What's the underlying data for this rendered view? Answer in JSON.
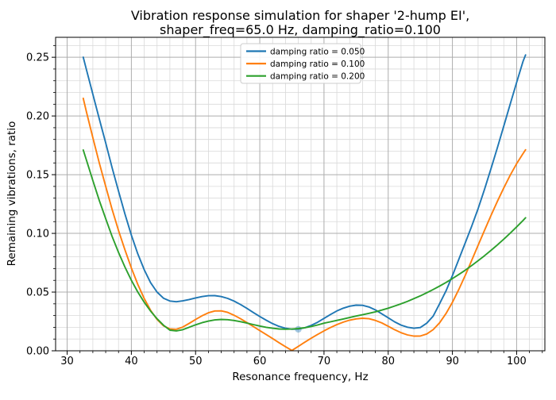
{
  "chart": {
    "title_line1": "Vibration response simulation for shaper '2-hump EI',",
    "title_line2": "shaper_freq=65.0 Hz, damping_ratio=0.100",
    "xlabel": "Resonance frequency, Hz",
    "ylabel": "Remaining vibrations, ratio"
  },
  "chart_data": {
    "type": "line",
    "title": "Vibration response simulation for shaper '2-hump EI',\nshaper_freq=65.0 Hz, damping_ratio=0.100",
    "xlabel": "Resonance frequency, Hz",
    "ylabel": "Remaining vibrations, ratio",
    "xlim": [
      28.2,
      104.4
    ],
    "ylim": [
      0,
      0.267
    ],
    "x_major_ticks": [
      30,
      40,
      50,
      60,
      70,
      80,
      90,
      100
    ],
    "x_tick_labels": [
      "30",
      "40",
      "50",
      "60",
      "70",
      "80",
      "90",
      "100"
    ],
    "x_minor_step": 2,
    "y_major_ticks": [
      0.0,
      0.05,
      0.1,
      0.15,
      0.2,
      0.25
    ],
    "y_tick_labels": [
      "0.00",
      "0.05",
      "0.10",
      "0.15",
      "0.20",
      "0.25"
    ],
    "y_minor_step": 0.01,
    "grid": "both",
    "legend_position": "upper center",
    "colors": {
      "grid_major": "#adadad",
      "grid_minor": "#d9d9d9",
      "spine": "#000000",
      "legend_border": "#cccccc",
      "legend_bg": "#ffffff"
    },
    "x": [
      32.5,
      33,
      34,
      35,
      36,
      37,
      38,
      39,
      40,
      41,
      42,
      43,
      44,
      45,
      46,
      47,
      48,
      49,
      50,
      51,
      52,
      53,
      54,
      55,
      56,
      57,
      58,
      59,
      60,
      61,
      62,
      63,
      64,
      65,
      66,
      67,
      68,
      69,
      70,
      71,
      72,
      73,
      74,
      75,
      76,
      77,
      78,
      79,
      80,
      81,
      82,
      83,
      84,
      85,
      86,
      87,
      88,
      89,
      90,
      91,
      92,
      93,
      94,
      95,
      96,
      97,
      98,
      99,
      100,
      101,
      101.4
    ],
    "series": [
      {
        "name": "damping ratio = 0.050",
        "color": "#1f77b4",
        "y": [
          0.25,
          0.2395,
          0.2185,
          0.1975,
          0.177,
          0.156,
          0.136,
          0.1165,
          0.0985,
          0.0825,
          0.069,
          0.058,
          0.05,
          0.0448,
          0.0424,
          0.0418,
          0.0425,
          0.0437,
          0.045,
          0.0462,
          0.0469,
          0.047,
          0.0462,
          0.0446,
          0.0423,
          0.0394,
          0.0361,
          0.0326,
          0.0292,
          0.026,
          0.0231,
          0.0208,
          0.0192,
          0.0184,
          0.0185,
          0.0196,
          0.0216,
          0.0243,
          0.0276,
          0.0309,
          0.0339,
          0.0363,
          0.038,
          0.0389,
          0.0387,
          0.0373,
          0.0348,
          0.0315,
          0.0281,
          0.0247,
          0.0219,
          0.0201,
          0.0192,
          0.0198,
          0.0235,
          0.0295,
          0.04,
          0.051,
          0.064,
          0.078,
          0.092,
          0.106,
          0.121,
          0.1375,
          0.155,
          0.173,
          0.1915,
          0.21,
          0.2285,
          0.2465,
          0.252
        ]
      },
      {
        "name": "damping ratio = 0.100",
        "color": "#ff7f0e",
        "y": [
          0.215,
          0.2035,
          0.1815,
          0.16,
          0.14,
          0.1205,
          0.1025,
          0.086,
          0.0705,
          0.0565,
          0.0445,
          0.0345,
          0.0267,
          0.0213,
          0.0186,
          0.0183,
          0.0202,
          0.0233,
          0.0266,
          0.0298,
          0.0324,
          0.0339,
          0.034,
          0.0327,
          0.0303,
          0.0273,
          0.024,
          0.0206,
          0.0172,
          0.0138,
          0.0104,
          0.0069,
          0.0035,
          0.0003,
          0.0038,
          0.0073,
          0.0107,
          0.0139,
          0.017,
          0.0198,
          0.0223,
          0.0244,
          0.0261,
          0.0272,
          0.0277,
          0.0273,
          0.0259,
          0.0237,
          0.0209,
          0.018,
          0.0154,
          0.0135,
          0.0125,
          0.0126,
          0.0143,
          0.018,
          0.0238,
          0.0317,
          0.0413,
          0.0523,
          0.0643,
          0.0769,
          0.0898,
          0.1026,
          0.1152,
          0.1273,
          0.1388,
          0.1495,
          0.1593,
          0.168,
          0.1712
        ]
      },
      {
        "name": "damping ratio = 0.200",
        "color": "#2ca02c",
        "y": [
          0.171,
          0.1625,
          0.145,
          0.128,
          0.1125,
          0.0975,
          0.0838,
          0.0713,
          0.06,
          0.05,
          0.0413,
          0.0338,
          0.0273,
          0.0218,
          0.0176,
          0.017,
          0.018,
          0.02,
          0.0221,
          0.0239,
          0.0253,
          0.0263,
          0.0267,
          0.0265,
          0.0258,
          0.0248,
          0.0236,
          0.0223,
          0.0211,
          0.02,
          0.0192,
          0.0186,
          0.0184,
          0.0185,
          0.0189,
          0.0197,
          0.0207,
          0.022,
          0.0235,
          0.0247,
          0.0259,
          0.0271,
          0.0283,
          0.0296,
          0.0307,
          0.0319,
          0.0332,
          0.0347,
          0.0363,
          0.0381,
          0.04,
          0.0421,
          0.0444,
          0.0468,
          0.0494,
          0.0522,
          0.0551,
          0.0582,
          0.0615,
          0.065,
          0.0687,
          0.0726,
          0.0767,
          0.081,
          0.0855,
          0.0902,
          0.0951,
          0.1002,
          0.1055,
          0.111,
          0.1133
        ]
      }
    ],
    "marker_point": {
      "x": 66,
      "y": 0.0183,
      "color": "#1f77b4",
      "opacity": 0.4,
      "radius": 4.2
    }
  }
}
